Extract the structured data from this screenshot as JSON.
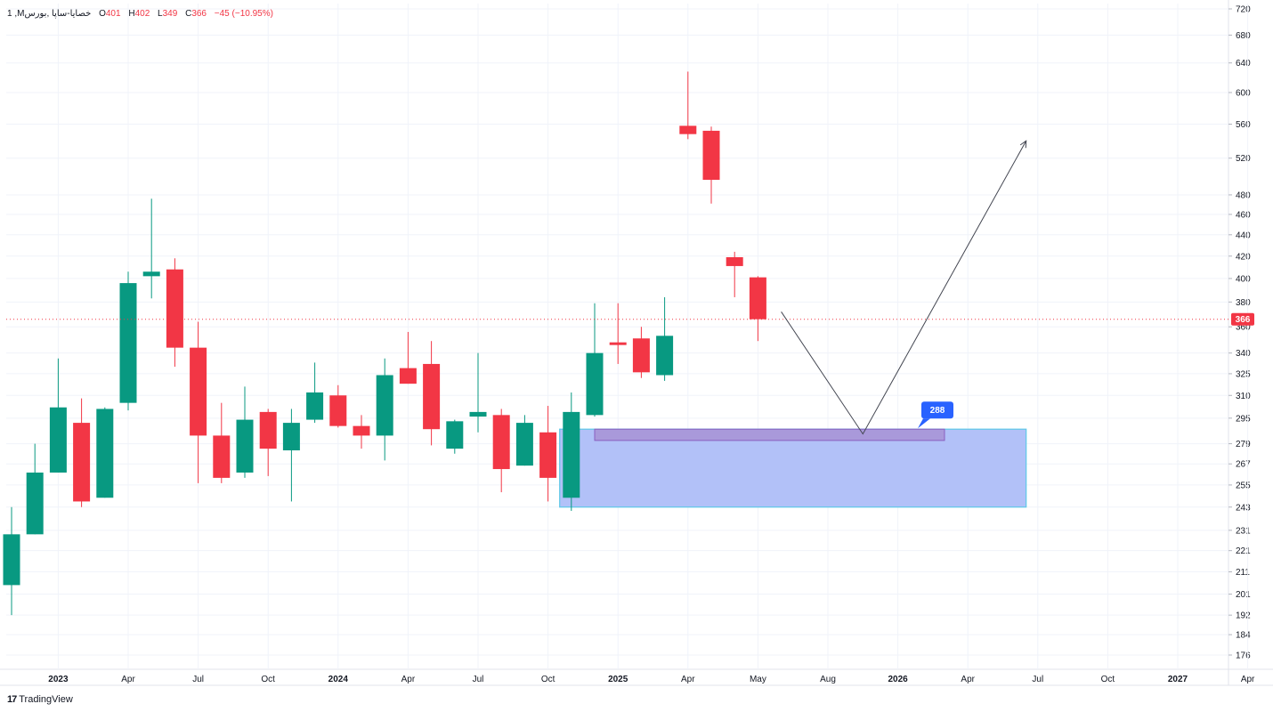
{
  "legend": {
    "symbol": "1 ,Mخصایا-ساپا ,بورس",
    "o_label": "O",
    "o_value": "401",
    "h_label": "H",
    "h_value": "402",
    "l_label": "L",
    "l_value": "349",
    "c_label": "C",
    "c_value": "366",
    "change": "−45 (−10.95%)"
  },
  "brand": {
    "logo": "17",
    "name": "TradingView"
  },
  "last_price_tag": "366",
  "zone_label": "288",
  "colors": {
    "up": "#089981",
    "down": "#f23645",
    "zone_fill": "#aebef8",
    "zone_border": "#5ec8e8",
    "label_bg": "#2962ff",
    "inner_zone": "#a58bd0"
  },
  "chart_data": {
    "type": "candlestick",
    "scale": "log",
    "y_ticks": [
      176,
      184,
      192,
      201,
      211,
      221,
      231,
      243,
      255,
      267,
      279,
      295,
      310,
      325,
      340,
      360,
      380,
      400,
      420,
      440,
      460,
      480,
      520,
      560,
      600,
      640,
      680,
      720
    ],
    "x_ticks": [
      "2023",
      "Apr",
      "Jul",
      "Oct",
      "2024",
      "Apr",
      "Jul",
      "Oct",
      "2025",
      "Apr",
      "May",
      "Aug",
      "2026",
      "Apr",
      "Jul",
      "Oct",
      "2027",
      "Apr"
    ],
    "x_tick_bold": [
      "2023",
      "2024",
      "2025",
      "2026",
      "2027"
    ],
    "candles": [
      {
        "o": 205,
        "h": 243,
        "l": 192,
        "c": 229
      },
      {
        "o": 229,
        "h": 279,
        "l": 229,
        "c": 262
      },
      {
        "o": 262,
        "h": 336,
        "l": 262,
        "c": 302
      },
      {
        "o": 292,
        "h": 308,
        "l": 243,
        "c": 246
      },
      {
        "o": 248,
        "h": 302,
        "l": 248,
        "c": 301
      },
      {
        "o": 305,
        "h": 406,
        "l": 300,
        "c": 396
      },
      {
        "o": 402,
        "h": 476,
        "l": 383,
        "c": 406
      },
      {
        "o": 408,
        "h": 418,
        "l": 330,
        "c": 344
      },
      {
        "o": 344,
        "h": 364,
        "l": 256,
        "c": 284
      },
      {
        "o": 284,
        "h": 305,
        "l": 256,
        "c": 259
      },
      {
        "o": 262,
        "h": 316,
        "l": 259,
        "c": 294
      },
      {
        "o": 299,
        "h": 301,
        "l": 260,
        "c": 276
      },
      {
        "o": 275,
        "h": 301,
        "l": 246,
        "c": 292
      },
      {
        "o": 294,
        "h": 333,
        "l": 292,
        "c": 312
      },
      {
        "o": 310,
        "h": 317,
        "l": 289,
        "c": 290
      },
      {
        "o": 290,
        "h": 297,
        "l": 276,
        "c": 284
      },
      {
        "o": 284,
        "h": 336,
        "l": 269,
        "c": 324
      },
      {
        "o": 329,
        "h": 356,
        "l": 318,
        "c": 318
      },
      {
        "o": 332,
        "h": 349,
        "l": 278,
        "c": 288
      },
      {
        "o": 276,
        "h": 294,
        "l": 273,
        "c": 293
      },
      {
        "o": 296,
        "h": 340,
        "l": 286,
        "c": 299
      },
      {
        "o": 297,
        "h": 301,
        "l": 251,
        "c": 264
      },
      {
        "o": 266,
        "h": 297,
        "l": 266,
        "c": 292
      },
      {
        "o": 286,
        "h": 303,
        "l": 246,
        "c": 259
      },
      {
        "o": 248,
        "h": 312,
        "l": 241,
        "c": 299
      },
      {
        "o": 297,
        "h": 379,
        "l": 296,
        "c": 340
      },
      {
        "o": 348,
        "h": 379,
        "l": 332,
        "c": 346
      },
      {
        "o": 351,
        "h": 360,
        "l": 322,
        "c": 326
      },
      {
        "o": 324,
        "h": 384,
        "l": 320,
        "c": 353
      },
      {
        "o": 558,
        "h": 628,
        "l": 542,
        "c": 548
      },
      {
        "o": 552,
        "h": 557,
        "l": 471,
        "c": 496
      },
      {
        "o": 419,
        "h": 424,
        "l": 384,
        "c": 411
      },
      {
        "o": 401,
        "h": 402,
        "l": 349,
        "c": 366
      }
    ],
    "current_price": 366,
    "zone": {
      "top": 288,
      "bottom": 243,
      "start_index": 23.5,
      "end_index": 43.5
    },
    "inner_zone": {
      "top": 288,
      "bottom": 281,
      "start_index": 25,
      "end_index": 40
    },
    "projection": [
      {
        "i": 33,
        "p": 372
      },
      {
        "i": 36.5,
        "p": 285
      },
      {
        "i": 43.5,
        "p": 540
      }
    ]
  }
}
